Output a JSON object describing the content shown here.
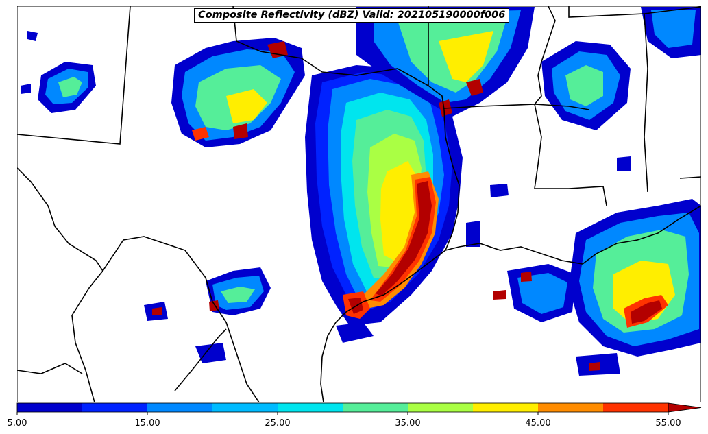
{
  "title": "Composite Reflectivity (dBZ) Valid: 202105190000f006",
  "colorbar": {
    "levels": [
      5,
      10,
      15,
      20,
      25,
      30,
      35,
      40,
      45,
      50,
      55
    ],
    "colors": [
      "#0000cd",
      "#0022ff",
      "#0088ff",
      "#00bbff",
      "#00e5ee",
      "#55ee99",
      "#aaff44",
      "#ffee00",
      "#ff8c00",
      "#ff3300",
      "#b30000"
    ],
    "extend": "max",
    "tick_labels": [
      "5.00",
      "15.00",
      "25.00",
      "35.00",
      "45.00",
      "55.00"
    ]
  }
}
